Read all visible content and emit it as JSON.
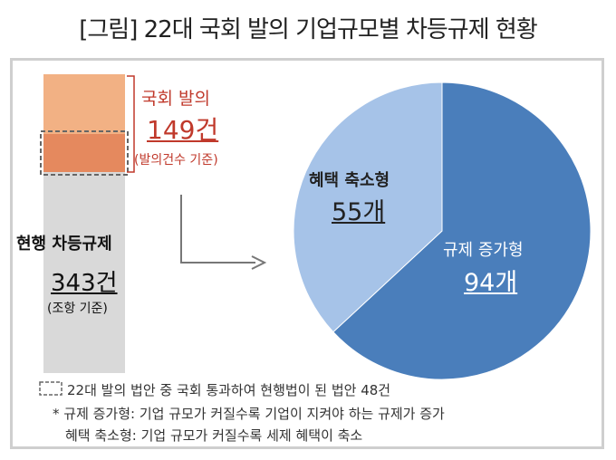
{
  "title": "[그림] 22대 국회 발의 기업규모별 차등규제 현황",
  "left": {
    "proposed_label": "국회 발의",
    "proposed_value": "149건",
    "proposed_basis": "(발의건수 기준)",
    "current_label": "현행 차등규제",
    "current_value": "343건",
    "current_basis": "(조항 기준)"
  },
  "chart_data": {
    "type": "pie",
    "slices": [
      {
        "label": "규제 증가형",
        "value": 94,
        "value_text": "94개",
        "color": "#4a7ebb"
      },
      {
        "label": "혜택 축소형",
        "value": 55,
        "value_text": "55개",
        "color": "#a6c3e8"
      }
    ]
  },
  "notes": {
    "legend_note": "22대 발의 법안 중 국회 통과하여 현행법이 된 법안 48건",
    "def_increase": "* 규제 증가형: 기업 규모가 커질수록 기업이 지켜야 하는 규제가 증가",
    "def_decrease": "혜택 축소형: 기업 규모가 커질수록 세제 혜택이 축소"
  },
  "colors": {
    "proposed_fill": "#f2b184",
    "passed_fill": "#e5895e",
    "current_fill": "#d9d9d9",
    "red_text": "#c0392b"
  }
}
